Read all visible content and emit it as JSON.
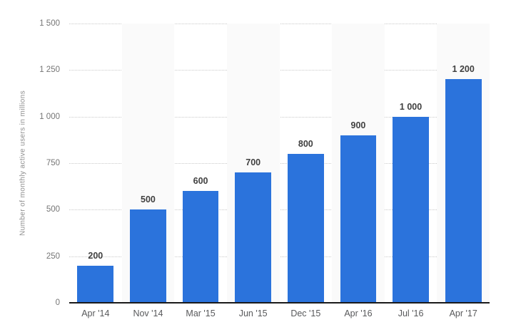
{
  "chart_data": {
    "type": "bar",
    "title": "",
    "ylabel": "Number of monthly active users in millions",
    "xlabel": "",
    "categories": [
      "Apr '14",
      "Nov '14",
      "Mar '15",
      "Jun '15",
      "Dec '15",
      "Apr '16",
      "Jul '16",
      "Apr '17"
    ],
    "values": [
      200,
      500,
      600,
      700,
      800,
      900,
      1000,
      1200
    ],
    "value_labels": [
      "200",
      "500",
      "600",
      "700",
      "800",
      "900",
      "1 000",
      "1 200"
    ],
    "ylim": [
      0,
      1500
    ],
    "ytick_step": 250,
    "ytick_labels": [
      "0",
      "250",
      "500",
      "750",
      "1 000",
      "1 250",
      "1 500"
    ],
    "grid": "horizontal dotted gridlines, solid dark baseline at 0",
    "legend": "none",
    "bar_color": "#2b73dc",
    "band_color": "#fafafa",
    "banded_columns": [
      1,
      3,
      5,
      7
    ]
  }
}
